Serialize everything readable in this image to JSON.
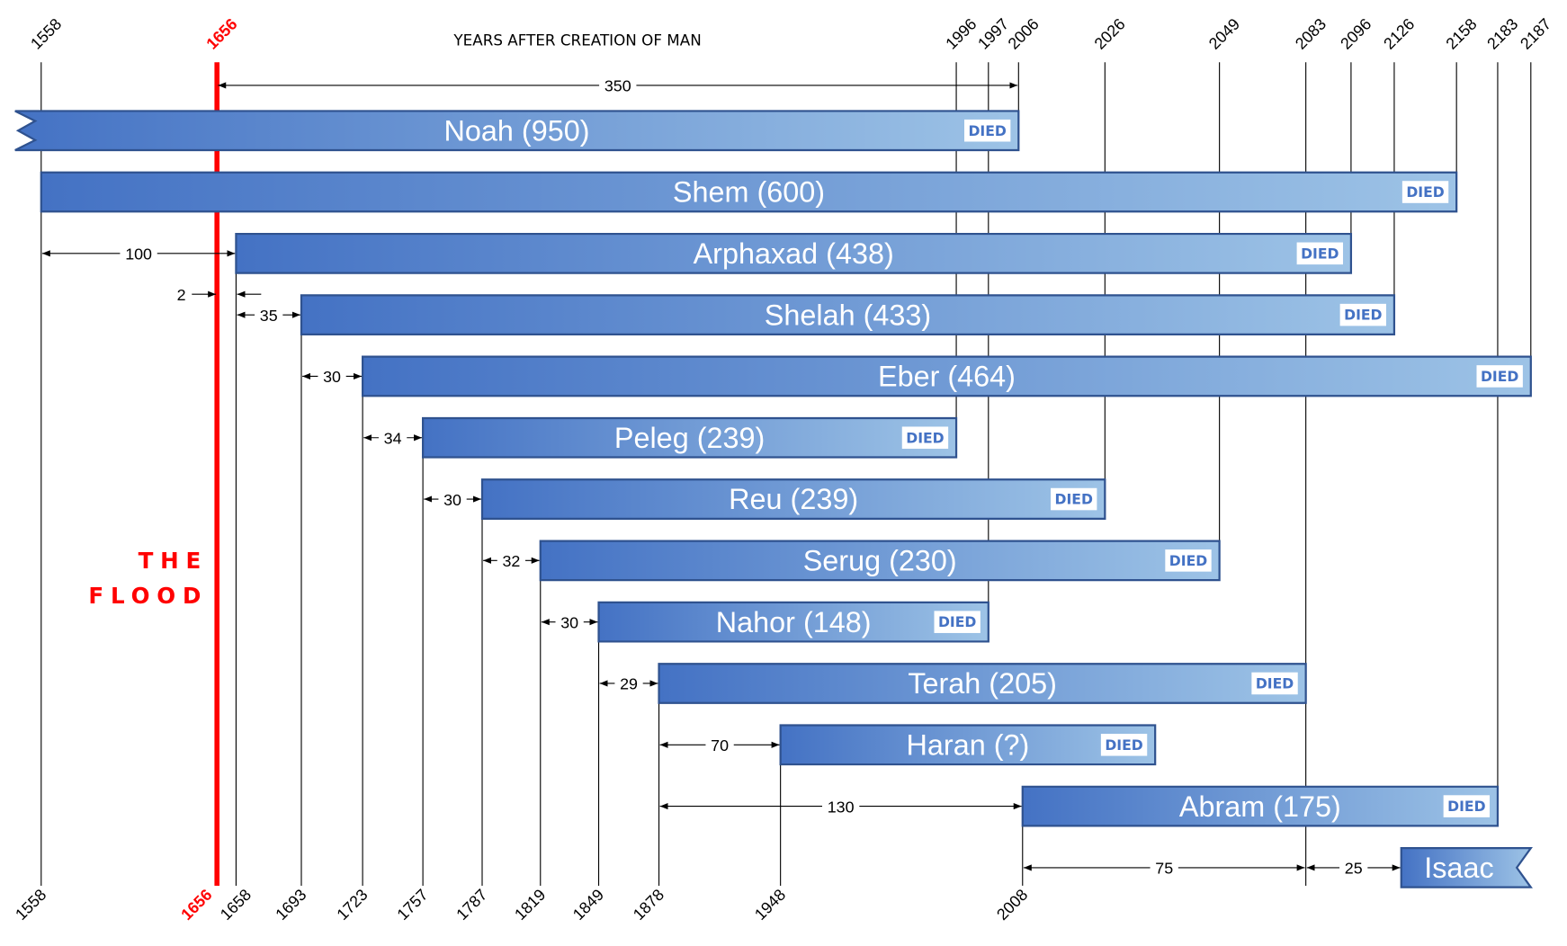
{
  "chart_data": {
    "type": "bar",
    "orientation": "horizontal-timeline",
    "title": "YEARS AFTER CREATION OF MAN",
    "flood": {
      "year": 1656,
      "label_line1": "THE",
      "label_line2": "FLOOD",
      "color": "#ff0000"
    },
    "top_year_labels": [
      "1558",
      "1656",
      "1996",
      "1997",
      "2006",
      "2026",
      "2049",
      "2083",
      "2096",
      "2126",
      "2158",
      "2183",
      "2187"
    ],
    "bottom_year_labels": [
      "1558",
      "1656",
      "1658",
      "1693",
      "1723",
      "1757",
      "1787",
      "1819",
      "1849",
      "1878",
      "1948",
      "2008"
    ],
    "people": [
      {
        "label": "Noah (950)",
        "birth": null,
        "death": 2006,
        "died_label": "DIED",
        "continues_left": true
      },
      {
        "label": "Shem (600)",
        "birth": 1558,
        "death": 2158,
        "died_label": "DIED"
      },
      {
        "label": "Arphaxad (438)",
        "birth": 1658,
        "death": 2096,
        "died_label": "DIED"
      },
      {
        "label": "Shelah (433)",
        "birth": 1693,
        "death": 2126,
        "died_label": "DIED"
      },
      {
        "label": "Eber (464)",
        "birth": 1723,
        "death": 2187,
        "died_label": "DIED"
      },
      {
        "label": "Peleg (239)",
        "birth": 1757,
        "death": 1996,
        "died_label": "DIED"
      },
      {
        "label": "Reu (239)",
        "birth": 1787,
        "death": 2026,
        "died_label": "DIED"
      },
      {
        "label": "Serug (230)",
        "birth": 1819,
        "death": 2049,
        "died_label": "DIED"
      },
      {
        "label": "Nahor (148)",
        "birth": 1849,
        "death": 1997,
        "died_label": "DIED"
      },
      {
        "label": "Terah (205)",
        "birth": 1878,
        "death": 2083,
        "died_label": "DIED"
      },
      {
        "label": "Haran (?)",
        "birth": 1948,
        "death": null,
        "died_label": "DIED"
      },
      {
        "label": "Abram (175)",
        "birth": 2008,
        "death": 2183,
        "died_label": "DIED"
      },
      {
        "label": "Isaac",
        "birth": 2108,
        "death": null,
        "died_label": "",
        "continues_right": true
      }
    ],
    "intervals": [
      {
        "label": "350",
        "from": 1656,
        "to": 2006
      },
      {
        "label": "100",
        "from": 1558,
        "to": 1658
      },
      {
        "label": "2",
        "from": 1656,
        "to": 1658
      },
      {
        "label": "35",
        "from": 1658,
        "to": 1693
      },
      {
        "label": "30",
        "from": 1693,
        "to": 1723
      },
      {
        "label": "34",
        "from": 1723,
        "to": 1757
      },
      {
        "label": "30",
        "from": 1757,
        "to": 1787
      },
      {
        "label": "32",
        "from": 1787,
        "to": 1819
      },
      {
        "label": "30",
        "from": 1819,
        "to": 1849
      },
      {
        "label": "29",
        "from": 1849,
        "to": 1878
      },
      {
        "label": "70",
        "from": 1878,
        "to": 1948
      },
      {
        "label": "130",
        "from": 1878,
        "to": 2008
      },
      {
        "label": "75",
        "from": 2008,
        "to": 2083
      },
      {
        "label": "25",
        "from": 2083,
        "to": 2108
      }
    ],
    "colors": {
      "bar_start": "#4472C4",
      "bar_end": "#9DC3E6",
      "bar_border": "#2F528F",
      "died_text": "#4472C4"
    }
  }
}
